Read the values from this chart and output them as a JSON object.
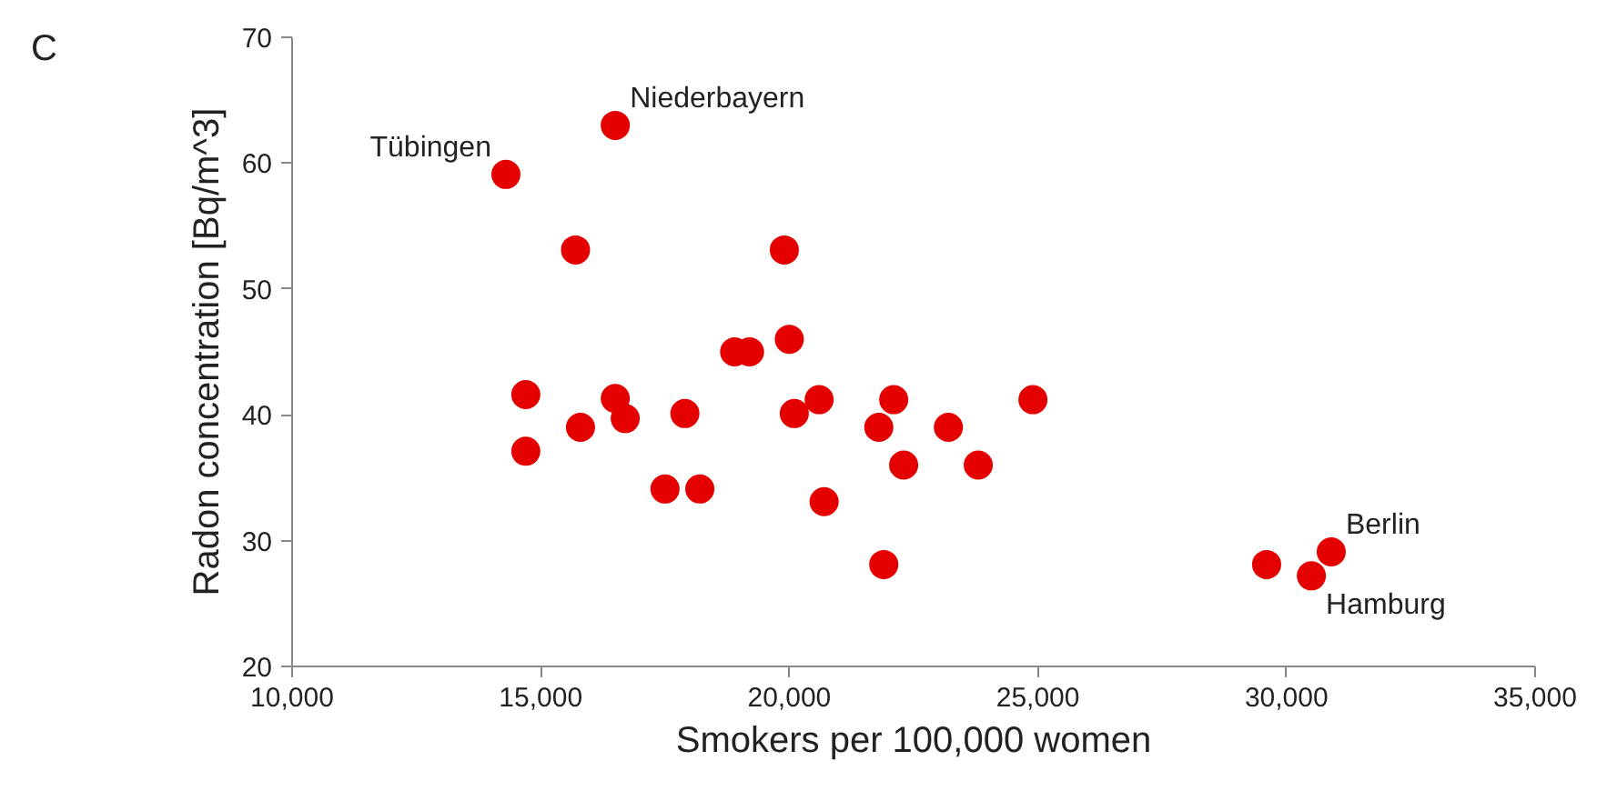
{
  "chart_data": {
    "type": "scatter",
    "xlabel": "Smokers per 100,000 women",
    "ylabel": "Radon concentration [Bq/m^3]",
    "x": [
      14300,
      16500,
      15700,
      19900,
      18900,
      19200,
      20000,
      14700,
      14700,
      15800,
      16500,
      16700,
      17900,
      17500,
      18200,
      20100,
      20600,
      20700,
      21900,
      21800,
      22100,
      22300,
      23200,
      23800,
      24900,
      29600,
      30500,
      30900
    ],
    "series": [
      {
        "color": "#e50000",
        "values": [
          59.1,
          63.0,
          53.1,
          53.1,
          45.0,
          45.0,
          46.0,
          41.6,
          37.1,
          39.0,
          41.3,
          39.7,
          40.1,
          34.1,
          34.1,
          40.1,
          41.2,
          33.1,
          28.1,
          39.0,
          41.2,
          36.0,
          39.0,
          36.0,
          41.2,
          28.1,
          27.2,
          29.1
        ]
      }
    ],
    "xlim": [
      10000,
      35000
    ],
    "ylim": [
      20,
      70
    ],
    "xticks": [
      {
        "value": 10000,
        "label": "10,000"
      },
      {
        "value": 15000,
        "label": "15,000"
      },
      {
        "value": 20000,
        "label": "20,000"
      },
      {
        "value": 25000,
        "label": "25,000"
      },
      {
        "value": 30000,
        "label": "30,000"
      },
      {
        "value": 35000,
        "label": "35,000"
      }
    ],
    "yticks": [
      20,
      30,
      40,
      50,
      60,
      70
    ],
    "grid": false,
    "marker": "circle",
    "annotations": [
      "C",
      {
        "text": "Tübingen",
        "x": 14300,
        "y": 59.1
      },
      {
        "text": "Niederbayern",
        "x": 16500,
        "y": 63.0
      },
      {
        "text": "Berlin",
        "x": 30900,
        "y": 29.1
      },
      {
        "text": "Hamburg",
        "x": 30500,
        "y": 27.2
      }
    ]
  }
}
